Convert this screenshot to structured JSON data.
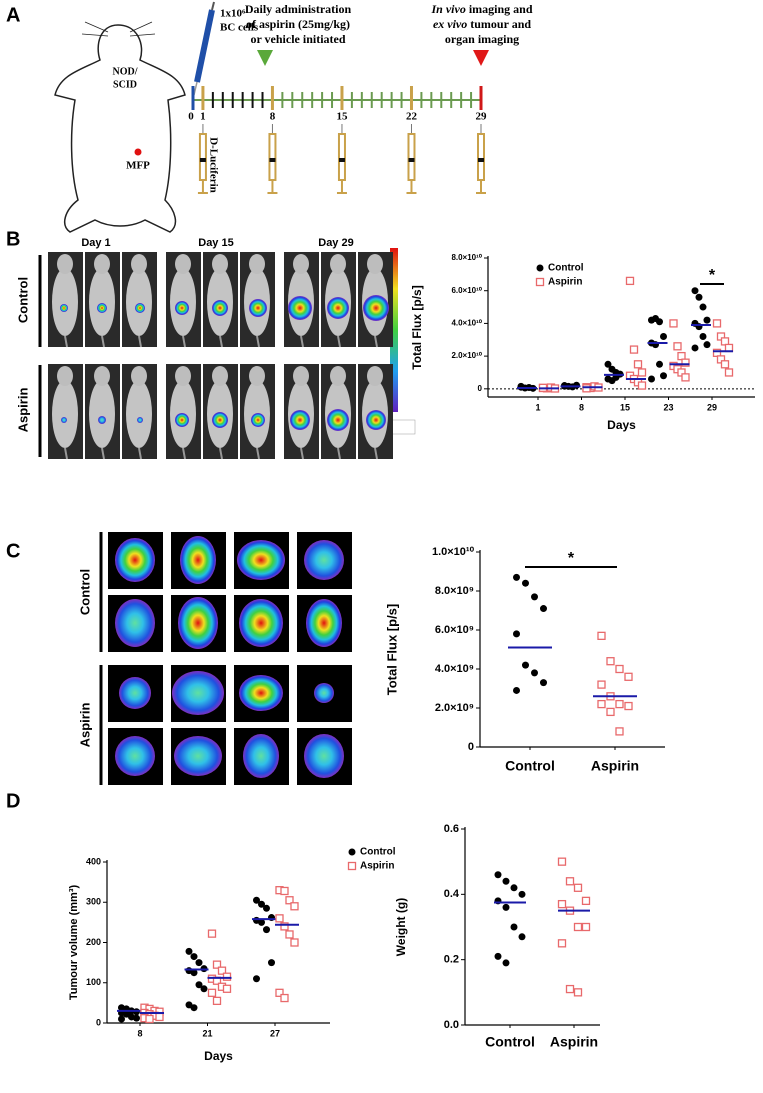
{
  "panel_labels": [
    "A",
    "B",
    "C",
    "D"
  ],
  "schematic": {
    "mouse_label": [
      "NOD/",
      "SCID"
    ],
    "site_label": "MFP",
    "cells_label": [
      "1x10⁶",
      "BC cells"
    ],
    "treatment_label": [
      "Daily administration",
      "of aspirin (25mg/kg)",
      "or vehicle initiated"
    ],
    "imaging_label": [
      [
        "In vivo",
        " imaging and"
      ],
      [
        "ex vivo",
        " tumour and"
      ],
      [
        "organ imaging"
      ]
    ],
    "timeline_days": [
      0,
      1,
      8,
      15,
      22,
      29
    ],
    "reagent_label": "D-Luciferin"
  },
  "bli_images": {
    "columns": [
      "Day 1",
      "Day 15",
      "Day 29"
    ],
    "rows": [
      "Control",
      "Aspirin"
    ]
  },
  "ex_vivo_images": {
    "rows": [
      "Control",
      "Aspirin"
    ]
  },
  "chart_data": [
    {
      "type": "scatter",
      "ylabel": "Total Flux [p/s]",
      "xlabel": "Days",
      "categories": [
        "1",
        "8",
        "15",
        "23",
        "29"
      ],
      "ylim": [
        -5000000000.0,
        80000000000.0
      ],
      "yticks": [
        0,
        {
          "value": 20000000000.0,
          "label": "2.0×10¹⁰"
        },
        {
          "value": 40000000000.0,
          "label": "4.0×10¹⁰"
        },
        {
          "value": 60000000000.0,
          "label": "6.0×10¹⁰"
        },
        {
          "value": 80000000000.0,
          "label": "8.0×10¹⁰"
        }
      ],
      "reference_line": 0,
      "legend": "upper left",
      "mean_color": "#1a1aa8",
      "significance": "*",
      "series": [
        {
          "name": "Control",
          "color": "#000000",
          "marker": "circle",
          "values": [
            [
              1500000000.0,
              500000000.0,
              800000000.0,
              300000000.0,
              1000000000.0
            ],
            [
              2000000000.0,
              1500000000.0,
              1200000000.0,
              2200000000.0,
              1600000000.0
            ],
            [
              15000000000.0,
              12000000000.0,
              10000000000.0,
              9000000000.0,
              6000000000.0,
              5000000000.0,
              7000000000.0
            ],
            [
              42000000000.0,
              43000000000.0,
              41000000000.0,
              32000000000.0,
              28000000000.0,
              27000000000.0,
              15000000000.0,
              8000000000.0,
              6000000000.0
            ],
            [
              60000000000.0,
              56000000000.0,
              50000000000.0,
              42000000000.0,
              40000000000.0,
              38000000000.0,
              32000000000.0,
              27000000000.0,
              25000000000.0
            ]
          ],
          "means": [
            500000000.0,
            1500000000.0,
            8500000000.0,
            28000000000.0,
            39000000000.0
          ]
        },
        {
          "name": "Aspirin",
          "color": "#e8696b",
          "marker": "square",
          "values": [
            [
              500000000.0,
              300000000.0,
              800000000.0,
              200000000.0,
              600000000.0
            ],
            [
              1000000000.0,
              500000000.0,
              1500000000.0,
              800000000.0,
              300000000.0
            ],
            [
              66000000000.0,
              24000000000.0,
              15000000000.0,
              10000000000.0,
              8000000000.0,
              6000000000.0,
              4000000000.0,
              2000000000.0
            ],
            [
              40000000000.0,
              26000000000.0,
              20000000000.0,
              16000000000.0,
              14000000000.0,
              12000000000.0,
              10000000000.0,
              7000000000.0
            ],
            [
              40000000000.0,
              32000000000.0,
              29000000000.0,
              25000000000.0,
              22000000000.0,
              18000000000.0,
              15000000000.0,
              10000000000.0
            ]
          ],
          "means": [
            300000000.0,
            1000000000.0,
            6000000000.0,
            15000000000.0,
            23000000000.0
          ]
        }
      ]
    },
    {
      "type": "scatter",
      "ylabel": "Total Flux [p/s]",
      "categories": [
        "Control",
        "Aspirin"
      ],
      "ylim": [
        0,
        10000000000.0
      ],
      "yticks": [
        0,
        {
          "value": 2000000000.0,
          "label": "2.0×10⁹"
        },
        {
          "value": 4000000000.0,
          "label": "4.0×10⁹"
        },
        {
          "value": 6000000000.0,
          "label": "6.0×10⁹"
        },
        {
          "value": 8000000000.0,
          "label": "8.0×10⁹"
        },
        {
          "value": 10000000000.0,
          "label": "1.0×10¹⁰"
        }
      ],
      "mean_color": "#1a1aa8",
      "significance": "*",
      "colors": [
        "#000000",
        "#e8696b"
      ],
      "markers": [
        "circle",
        "square"
      ],
      "values": [
        [
          8700000000.0,
          8400000000.0,
          7700000000.0,
          7100000000.0,
          5800000000.0,
          4200000000.0,
          3800000000.0,
          3300000000.0,
          2900000000.0
        ],
        [
          5700000000.0,
          4400000000.0,
          4000000000.0,
          3600000000.0,
          3200000000.0,
          2600000000.0,
          2200000000.0,
          2100000000.0,
          2200000000.0,
          1800000000.0,
          800000000.0
        ]
      ],
      "means": [
        5100000000.0,
        2600000000.0
      ]
    },
    {
      "type": "scatter",
      "ylabel": "Tumour volume (mm³)",
      "xlabel": "Days",
      "categories": [
        "8",
        "21",
        "27"
      ],
      "ylim": [
        0,
        400
      ],
      "yticks": [
        0,
        100,
        200,
        300,
        400
      ],
      "legend": "right",
      "mean_color": "#1a1aa8",
      "series": [
        {
          "name": "Control",
          "color": "#000000",
          "marker": "circle",
          "values": [
            [
              38,
              35,
              30,
              28,
              25,
              22,
              15,
              12,
              10
            ],
            [
              178,
              165,
              150,
              135,
              130,
              125,
              95,
              85,
              45,
              38
            ],
            [
              305,
              295,
              285,
              262,
              255,
              250,
              232,
              150,
              110
            ]
          ],
          "means": [
            30,
            133,
            258
          ]
        },
        {
          "name": "Aspirin",
          "color": "#e8696b",
          "marker": "square",
          "values": [
            [
              38,
              35,
              30,
              28,
              25,
              22,
              18,
              15,
              12,
              10
            ],
            [
              222,
              145,
              130,
              115,
              110,
              105,
              90,
              85,
              75,
              55
            ],
            [
              330,
              328,
              305,
              290,
              260,
              240,
              220,
              200,
              75,
              62
            ]
          ],
          "means": [
            25,
            112,
            244
          ]
        }
      ]
    },
    {
      "type": "scatter",
      "ylabel": "Weight (g)",
      "categories": [
        "Control",
        "Aspirin"
      ],
      "ylim": [
        0,
        0.6
      ],
      "yticks": [
        {
          "value": 0,
          "label": "0.0"
        },
        0.2,
        0.4,
        0.6
      ],
      "mean_color": "#1a1aa8",
      "colors": [
        "#000000",
        "#e8696b"
      ],
      "markers": [
        "circle",
        "square"
      ],
      "values": [
        [
          0.46,
          0.44,
          0.42,
          0.4,
          0.38,
          0.36,
          0.3,
          0.27,
          0.21,
          0.19
        ],
        [
          0.5,
          0.44,
          0.42,
          0.38,
          0.37,
          0.35,
          0.3,
          0.3,
          0.25,
          0.11,
          0.1
        ]
      ],
      "means": [
        0.375,
        0.35
      ]
    }
  ]
}
